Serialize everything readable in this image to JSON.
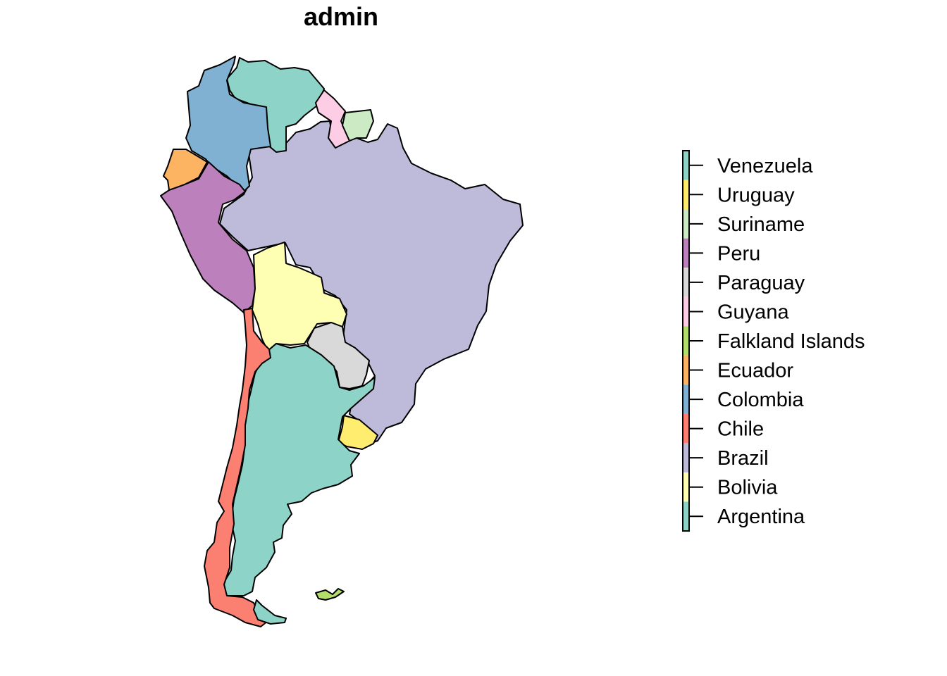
{
  "map": {
    "title": "admin"
  },
  "legend": {
    "items": [
      {
        "label": "Venezuela",
        "color": "#8DD3C7"
      },
      {
        "label": "Uruguay",
        "color": "#FFED6F"
      },
      {
        "label": "Suriname",
        "color": "#CCEBC5"
      },
      {
        "label": "Peru",
        "color": "#BC80BD"
      },
      {
        "label": "Paraguay",
        "color": "#D9D9D9"
      },
      {
        "label": "Guyana",
        "color": "#FCCDE5"
      },
      {
        "label": "Falkland Islands",
        "color": "#B3DE69"
      },
      {
        "label": "Ecuador",
        "color": "#FDB462"
      },
      {
        "label": "Colombia",
        "color": "#80B1D3"
      },
      {
        "label": "Chile",
        "color": "#FB8072"
      },
      {
        "label": "Brazil",
        "color": "#BEBADA"
      },
      {
        "label": "Bolivia",
        "color": "#FFFFB3"
      },
      {
        "label": "Argentina",
        "color": "#8DD3C7"
      }
    ]
  }
}
